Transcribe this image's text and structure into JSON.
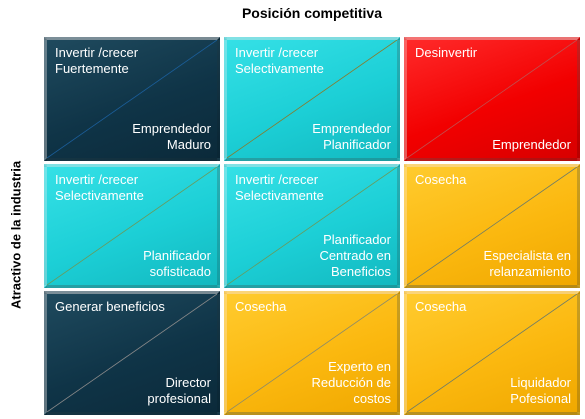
{
  "header": {
    "title": "Posición competitiva"
  },
  "side": {
    "title": "Atractivo de la industria"
  },
  "cells": [
    {
      "tl": "Invertir /crecer\nFuertemente",
      "br": "Emprendedor\nMaduro",
      "color": "#0f3447",
      "diag": "#1b5e9a"
    },
    {
      "tl": "Invertir /crecer\nSelectivamente",
      "br": "Emprendedor\nPlanificador",
      "color": "#1ccfd6",
      "diag": "#8a7a2a"
    },
    {
      "tl": "Desinvertir",
      "br": "Emprendedor",
      "color": "#f20000",
      "diag": "#c05050"
    },
    {
      "tl": "Invertir /crecer\nSelectivamente",
      "br": "Planificador\nsofisticado",
      "color": "#1ccfd6",
      "diag": "#6a9a5a"
    },
    {
      "tl": "Invertir /crecer\nSelectivamente",
      "br": "Planificador\nCentrado en\nBeneficios",
      "color": "#1ccfd6",
      "diag": "#6a9a5a"
    },
    {
      "tl": "Cosecha",
      "br": "Especialista  en\nrelanzamiento",
      "color": "#fbb80f",
      "diag": "#6a7a6a"
    },
    {
      "tl": "Generar  beneficios",
      "br": "Director\nprofesional",
      "color": "#0f3447",
      "diag": "#8a8a8a"
    },
    {
      "tl": "Cosecha",
      "br": "Experto en\nReducción de\ncostos",
      "color": "#fbb80f",
      "diag": "#8a8a6a"
    },
    {
      "tl": "Cosecha",
      "br": "Liquidador\nPofesional",
      "color": "#fbb80f",
      "diag": "#6a7a6a"
    }
  ]
}
